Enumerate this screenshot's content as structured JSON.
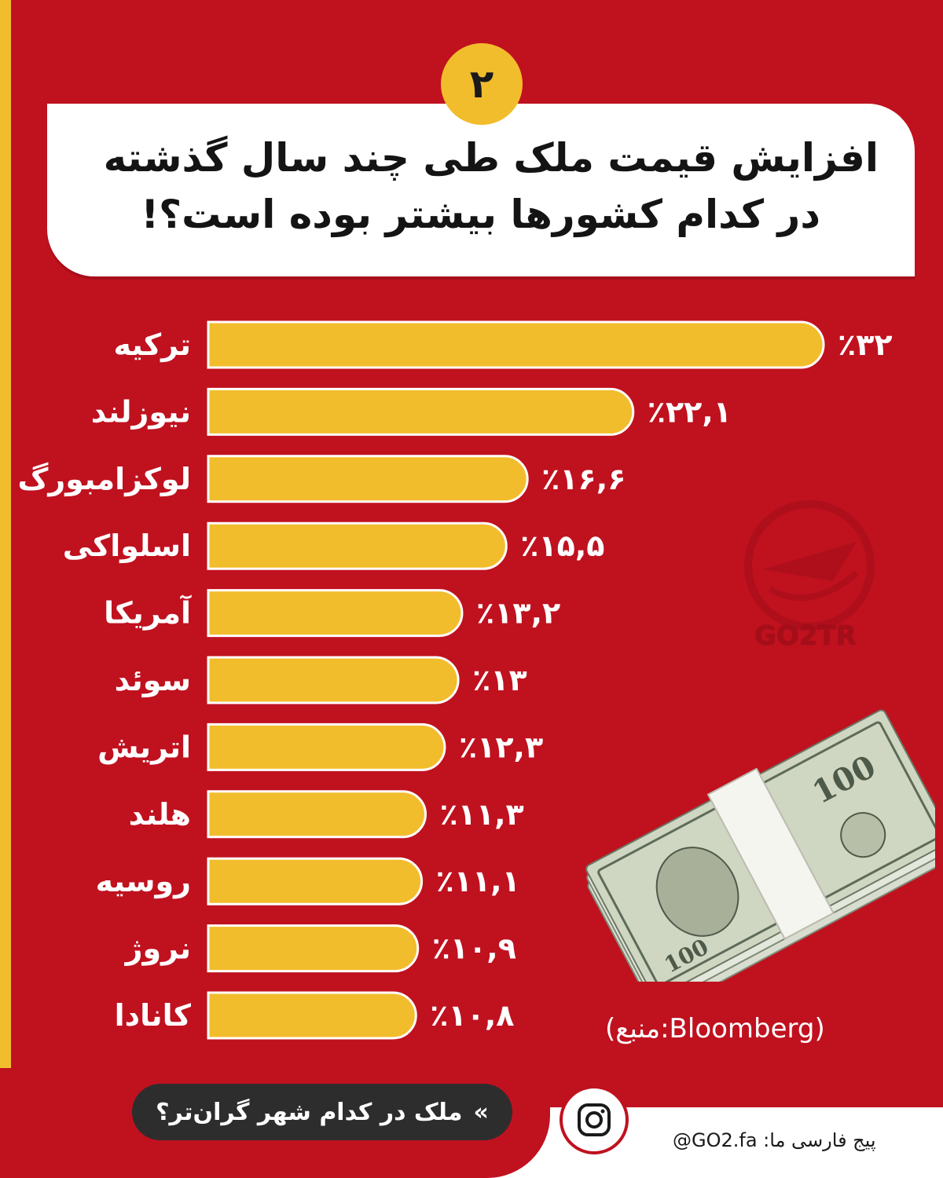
{
  "header": {
    "number": "۲",
    "title_line1": "افزایش قیمت ملک طی چند سال گذشته",
    "title_line2": "در کدام کشورها بیشتر بوده است؟!"
  },
  "chart_data": {
    "type": "bar",
    "orientation": "horizontal",
    "categories": [
      "ترکیه",
      "نیوزلند",
      "لوکزامبورگ",
      "اسلواکی",
      "آمریکا",
      "سوئد",
      "اتریش",
      "هلند",
      "روسیه",
      "نروژ",
      "کانادا"
    ],
    "values": [
      32,
      22.1,
      16.6,
      15.5,
      13.2,
      13,
      12.3,
      11.3,
      11.1,
      10.9,
      10.8
    ],
    "value_labels": [
      "٪۳۲",
      "٪۲۲,۱",
      "٪۱۶,۶",
      "٪۱۵,۵",
      "٪۱۳,۲",
      "٪۱۳",
      "٪۱۲,۳",
      "٪۱۱,۳",
      "٪۱۱,۱",
      "٪۱۰,۹",
      "٪۱۰,۸"
    ],
    "bar_color": "#f2bd2c",
    "grid": false,
    "legend": "none"
  },
  "source": "(منبع:Bloomberg)",
  "watermark": "GO2TR",
  "footer": {
    "link_text": "ملک در کدام شهر گران‌تر؟",
    "chevron": "«",
    "instagram_icon": "instagram-icon",
    "handle": "پیج فارسی ما: GO2.fa@"
  },
  "colors": {
    "background": "#c0111f",
    "accent": "#f2bd2c",
    "card": "#ffffff",
    "pill": "#2d2d2d"
  }
}
